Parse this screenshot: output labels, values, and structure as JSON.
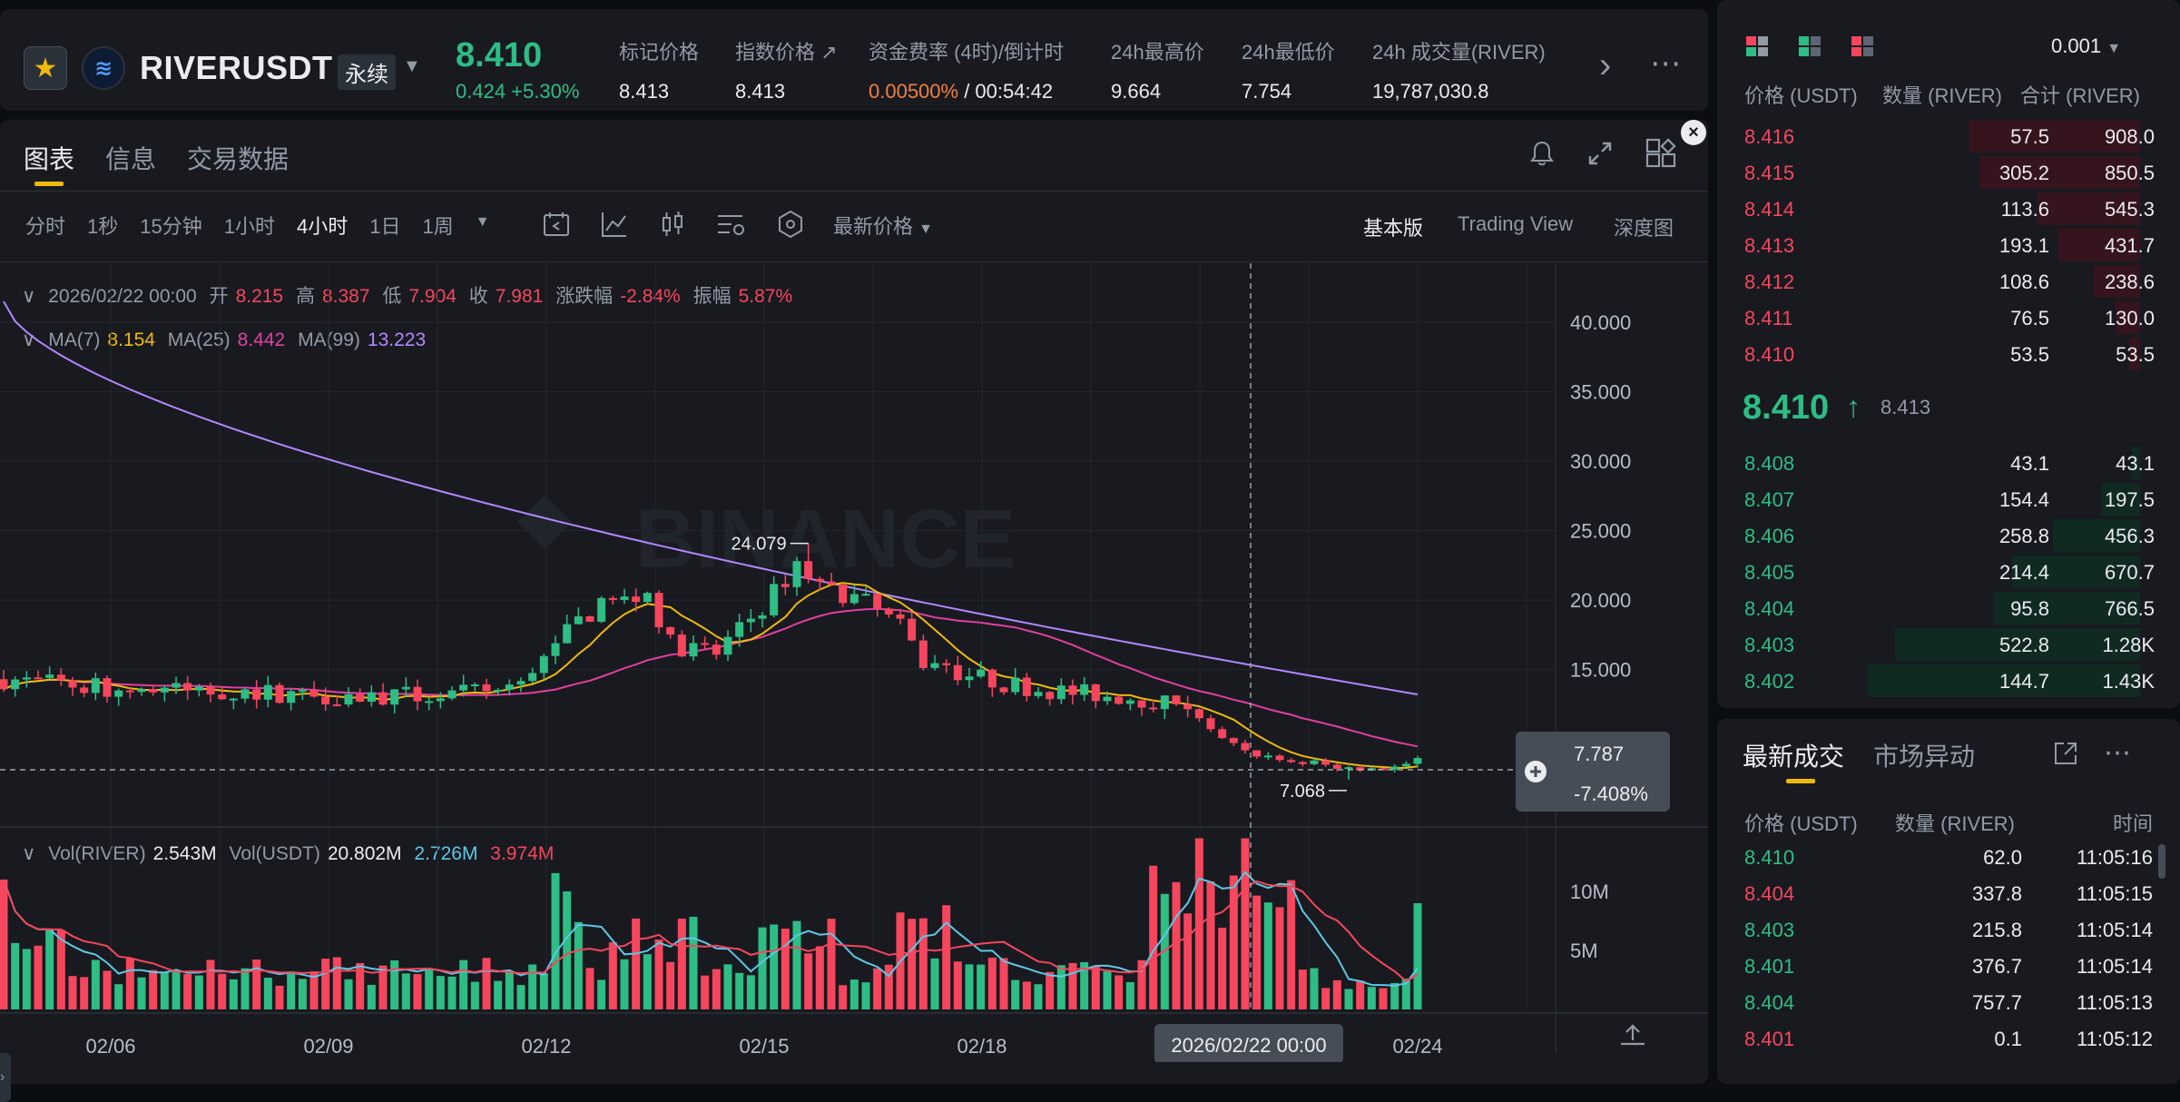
{
  "header": {
    "symbol": "RIVERUSDT",
    "contract_type": "永续",
    "last_price": "8.410",
    "change": "0.424 +5.30%",
    "stats": [
      {
        "label": "标记价格",
        "value": "8.413"
      },
      {
        "label": "指数价格 ↗",
        "value": "8.413"
      },
      {
        "label": "资金费率 (4时)/倒计时",
        "value": "0.00500%",
        "value2": " / 00:54:42"
      },
      {
        "label": "24h最高价",
        "value": "9.664"
      },
      {
        "label": "24h最低价",
        "value": "7.754"
      },
      {
        "label": "24h 成交量(RIVER)",
        "value": "19,787,030.8"
      }
    ],
    "next_icon": "›",
    "more_icon": "⋯"
  },
  "chart_panel": {
    "tabs": [
      "图表",
      "信息",
      "交易数据"
    ],
    "active_tab": 0,
    "intervals": [
      "分时",
      "1秒",
      "15分钟",
      "1小时",
      "4小时",
      "1日",
      "1周"
    ],
    "active_interval": "4小时",
    "price_type": "最新价格",
    "versions": [
      "基本版",
      "Trading View",
      "深度图"
    ],
    "active_version": "基本版",
    "ohlc": {
      "date": "2026/02/22 00:00",
      "open_label": "开",
      "open": "8.215",
      "high_label": "高",
      "high": "8.387",
      "low_label": "低",
      "low": "7.904",
      "close_label": "收",
      "close": "7.981",
      "change_label": "涨跌幅",
      "change": "-2.84%",
      "amp_label": "振幅",
      "amp": "5.87%"
    },
    "ma": {
      "ma7_label": "MA(7)",
      "ma7": "8.154",
      "ma25_label": "MA(25)",
      "ma25": "8.442",
      "ma99_label": "MA(99)",
      "ma99": "13.223"
    },
    "vol": {
      "river_label": "Vol(RIVER)",
      "river": "2.543M",
      "usdt_label": "Vol(USDT)",
      "usdt": "20.802M",
      "ma1": "2.726M",
      "ma2": "3.974M"
    },
    "price_ticks": [
      "40.000",
      "35.000",
      "30.000",
      "25.000",
      "20.000",
      "15.000"
    ],
    "vol_ticks": [
      "10M",
      "5M"
    ],
    "date_ticks": [
      "02/06",
      "02/09",
      "02/12",
      "02/15",
      "02/18",
      "02/24"
    ],
    "crosshair_date": "2026/02/22 00:00",
    "crosshair_price": "7.787",
    "crosshair_pct": "-7.408%",
    "high_marker": "24.079",
    "low_marker": "7.068",
    "watermark": "BINANCE",
    "colors": {
      "up": "#2ebd85",
      "down": "#f6465d",
      "ma7": "#f0b90b",
      "ma25": "#e040a0",
      "ma99": "#b388ff",
      "vol_ma1": "#5ec8e5",
      "vol_ma2": "#f6465d"
    }
  },
  "chart_data": {
    "type": "candlestick",
    "interval": "4小时",
    "x_range": [
      "02/05",
      "02/24"
    ],
    "ylim": [
      7,
      42
    ],
    "candles_approx": [
      {
        "date": "02/05",
        "o": 14.2,
        "h": 14.8,
        "l": 13.2,
        "c": 13.6
      },
      {
        "date": "02/06",
        "o": 13.6,
        "h": 14.5,
        "l": 12.6,
        "c": 13.8
      },
      {
        "date": "02/07",
        "o": 13.8,
        "h": 14.2,
        "l": 12.8,
        "c": 13.2
      },
      {
        "date": "02/08",
        "o": 13.2,
        "h": 13.9,
        "l": 12.8,
        "c": 13.0
      },
      {
        "date": "02/09",
        "o": 13.0,
        "h": 13.8,
        "l": 12.6,
        "c": 13.4
      },
      {
        "date": "02/10",
        "o": 13.4,
        "h": 14.4,
        "l": 13.0,
        "c": 14.0
      },
      {
        "date": "02/11",
        "o": 14.0,
        "h": 21.2,
        "l": 13.6,
        "c": 19.4
      },
      {
        "date": "02/12",
        "o": 19.4,
        "h": 20.6,
        "l": 15.6,
        "c": 16.8
      },
      {
        "date": "02/13",
        "o": 16.8,
        "h": 24.079,
        "l": 16.2,
        "c": 21.8
      },
      {
        "date": "02/14",
        "o": 21.8,
        "h": 22.4,
        "l": 14.0,
        "c": 14.6
      },
      {
        "date": "02/15",
        "o": 14.6,
        "h": 15.2,
        "l": 13.6,
        "c": 14.0
      },
      {
        "date": "02/16",
        "o": 14.0,
        "h": 14.4,
        "l": 12.8,
        "c": 13.2
      },
      {
        "date": "02/17",
        "o": 13.2,
        "h": 13.8,
        "l": 12.4,
        "c": 12.6
      },
      {
        "date": "02/18",
        "o": 12.6,
        "h": 12.9,
        "l": 8.6,
        "c": 9.2
      },
      {
        "date": "02/19",
        "o": 9.2,
        "h": 9.8,
        "l": 7.6,
        "c": 8.2
      },
      {
        "date": "02/20",
        "o": 8.2,
        "h": 8.8,
        "l": 7.8,
        "c": 8.0
      },
      {
        "date": "02/21",
        "o": 8.0,
        "h": 8.6,
        "l": 7.7,
        "c": 8.2
      },
      {
        "date": "02/22",
        "o": 8.215,
        "h": 8.387,
        "l": 7.904,
        "c": 7.981
      },
      {
        "date": "02/23",
        "o": 7.98,
        "h": 8.3,
        "l": 7.068,
        "c": 8.0
      },
      {
        "date": "02/24",
        "o": 8.0,
        "h": 9.664,
        "l": 7.754,
        "c": 8.41
      }
    ]
  },
  "orderbook": {
    "precision": "0.001",
    "headers": [
      "价格 (USDT)",
      "数量 (RIVER)",
      "合计 (RIVER)"
    ],
    "asks": [
      {
        "price": "8.416",
        "qty": "57.5",
        "total": "908.0",
        "depth": 0.63
      },
      {
        "price": "8.415",
        "qty": "305.2",
        "total": "850.5",
        "depth": 0.59
      },
      {
        "price": "8.414",
        "qty": "113.6",
        "total": "545.3",
        "depth": 0.38
      },
      {
        "price": "8.413",
        "qty": "193.1",
        "total": "431.7",
        "depth": 0.3
      },
      {
        "price": "8.412",
        "qty": "108.6",
        "total": "238.6",
        "depth": 0.17
      },
      {
        "price": "8.411",
        "qty": "76.5",
        "total": "130.0",
        "depth": 0.09
      },
      {
        "price": "8.410",
        "qty": "53.5",
        "total": "53.5",
        "depth": 0.04
      }
    ],
    "mid_price": "8.410",
    "mid_arrow": "↑",
    "mid_mark": "8.413",
    "bids": [
      {
        "price": "8.408",
        "qty": "43.1",
        "total": "43.1",
        "depth": 0.03
      },
      {
        "price": "8.407",
        "qty": "154.4",
        "total": "197.5",
        "depth": 0.14
      },
      {
        "price": "8.406",
        "qty": "258.8",
        "total": "456.3",
        "depth": 0.32
      },
      {
        "price": "8.405",
        "qty": "214.4",
        "total": "670.7",
        "depth": 0.47
      },
      {
        "price": "8.404",
        "qty": "95.8",
        "total": "766.5",
        "depth": 0.54
      },
      {
        "price": "8.403",
        "qty": "522.8",
        "total": "1.28K",
        "depth": 0.9
      },
      {
        "price": "8.402",
        "qty": "144.7",
        "total": "1.43K",
        "depth": 1.0
      }
    ]
  },
  "trades": {
    "tabs": [
      "最新成交",
      "市场异动"
    ],
    "headers": [
      "价格 (USDT)",
      "数量 (RIVER)",
      "时间"
    ],
    "rows": [
      {
        "price": "8.410",
        "qty": "62.0",
        "time": "11:05:16",
        "side": "buy"
      },
      {
        "price": "8.404",
        "qty": "337.8",
        "time": "11:05:15",
        "side": "sell"
      },
      {
        "price": "8.403",
        "qty": "215.8",
        "time": "11:05:14",
        "side": "buy"
      },
      {
        "price": "8.401",
        "qty": "376.7",
        "time": "11:05:14",
        "side": "buy"
      },
      {
        "price": "8.404",
        "qty": "757.7",
        "time": "11:05:13",
        "side": "buy"
      },
      {
        "price": "8.401",
        "qty": "0.1",
        "time": "11:05:12",
        "side": "sell"
      }
    ]
  }
}
